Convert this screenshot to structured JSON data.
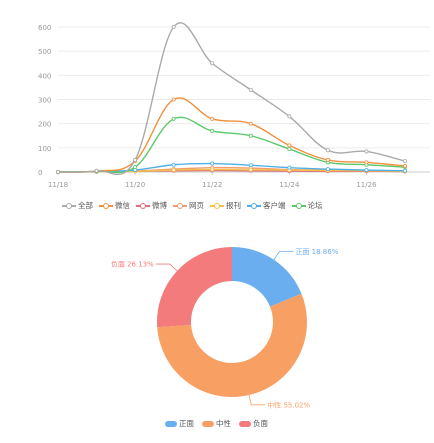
{
  "chart_data": [
    {
      "type": "line",
      "title": "",
      "xlabel": "",
      "ylabel": "",
      "ylim": [
        0,
        600
      ],
      "yticks": [
        0,
        100,
        200,
        300,
        400,
        500,
        600
      ],
      "xticks": [
        "11/18",
        "11/20",
        "11/22",
        "11/24",
        "11/26"
      ],
      "x": [
        "11/18",
        "11/19",
        "11/20",
        "11/21",
        "11/22",
        "11/23",
        "11/24",
        "11/25",
        "11/26",
        "11/27"
      ],
      "grid": true,
      "legend": "bottom",
      "series": [
        {
          "name": "全部",
          "color": "#aaaaaa",
          "values": [
            0,
            5,
            50,
            600,
            450,
            340,
            230,
            90,
            85,
            45
          ]
        },
        {
          "name": "微信",
          "color": "#f2903e",
          "values": [
            0,
            4,
            45,
            300,
            220,
            200,
            110,
            50,
            40,
            25
          ]
        },
        {
          "name": "微博",
          "color": "#e46b7a",
          "values": [
            0,
            1,
            3,
            5,
            6,
            5,
            4,
            3,
            3,
            2
          ]
        },
        {
          "name": "网页",
          "color": "#f39b6d",
          "values": [
            0,
            1,
            4,
            12,
            18,
            16,
            10,
            8,
            6,
            4
          ]
        },
        {
          "name": "报刊",
          "color": "#f4c148",
          "values": [
            0,
            1,
            3,
            8,
            10,
            9,
            8,
            6,
            5,
            3
          ]
        },
        {
          "name": "客户端",
          "color": "#4fb0e8",
          "values": [
            0,
            2,
            8,
            30,
            35,
            28,
            18,
            12,
            8,
            5
          ]
        },
        {
          "name": "论坛",
          "color": "#5bc86a",
          "values": [
            0,
            3,
            20,
            220,
            170,
            150,
            95,
            40,
            30,
            20
          ]
        }
      ]
    },
    {
      "type": "pie",
      "donut": true,
      "categories": [
        "正面",
        "中性",
        "负面"
      ],
      "values": [
        18.86,
        55.02,
        26.13
      ],
      "labels": [
        "正面 18.86%",
        "中性 55.02%",
        "负面 26.13%"
      ],
      "colors": [
        "#6aaef0",
        "#f8a064",
        "#f47b7b"
      ],
      "legend": "bottom"
    }
  ]
}
